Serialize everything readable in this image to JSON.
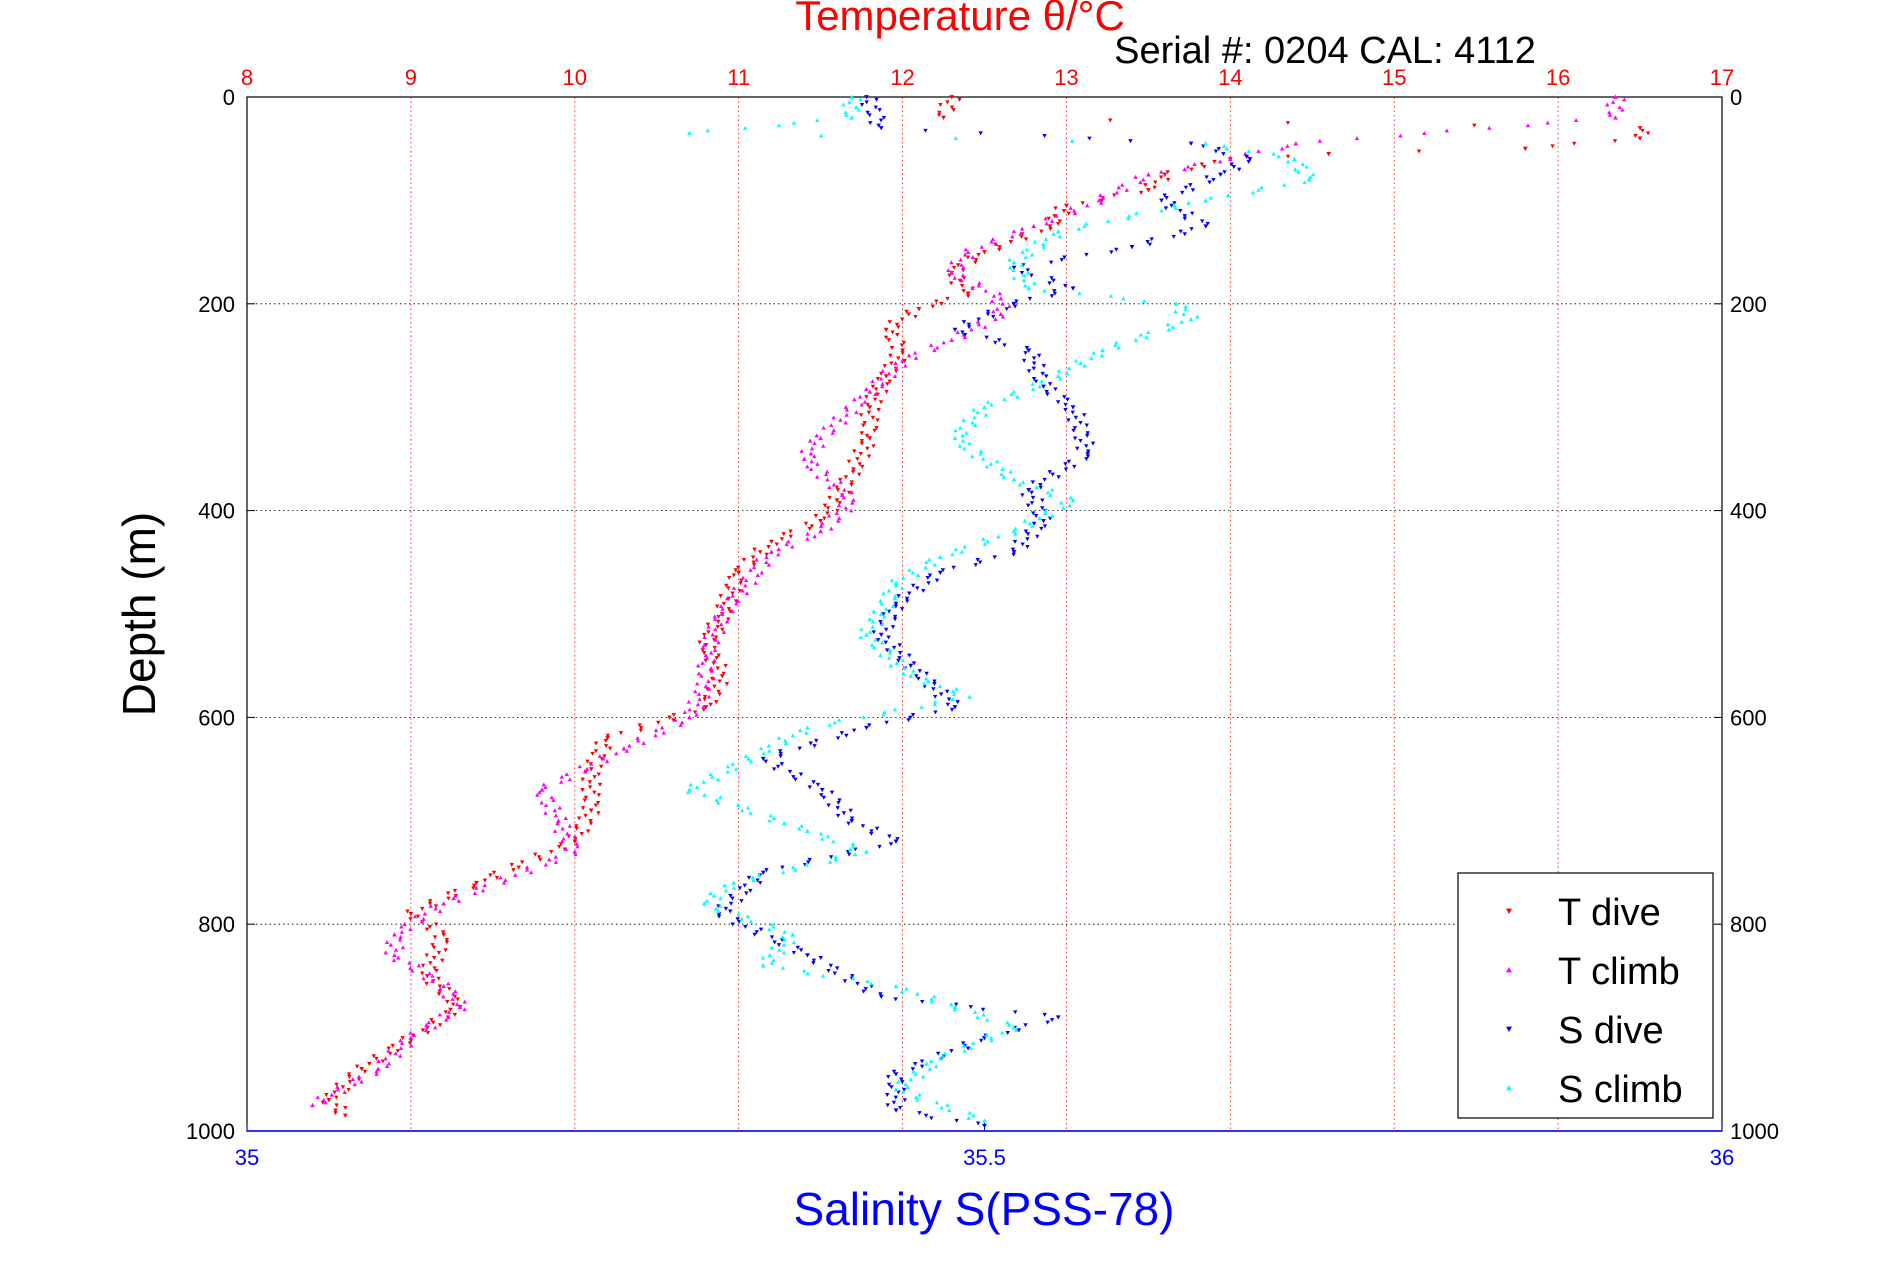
{
  "chart_data": {
    "type": "scatter",
    "title": "Temperature θ/°C",
    "subtitle": "Serial #: 0204  CAL: 4112",
    "ylabel": "Depth (m)",
    "xlabel": "Salinity S(PSS-78)",
    "ylim": [
      0,
      1000
    ],
    "y_reversed": true,
    "temperature_axis": {
      "label": "Temperature θ/°C",
      "range": [
        8,
        17
      ],
      "ticks": [
        "8",
        "9",
        "10",
        "11",
        "12",
        "13",
        "14",
        "15",
        "16",
        "17"
      ],
      "color": "#ff0000"
    },
    "salinity_axis": {
      "label": "Salinity S(PSS-78)",
      "range": [
        35,
        36
      ],
      "ticks": [
        "35",
        "35.5",
        "36"
      ],
      "color": "#0000ff"
    },
    "depth_ticks": [
      "0",
      "200",
      "400",
      "600",
      "800",
      "1000"
    ],
    "grid": {
      "vertical": true,
      "vertical_color": "#ff0000",
      "horizontal": true,
      "horizontal_color": "#000000"
    },
    "legend": {
      "position": "bottom-right",
      "entries": [
        "T dive",
        "T climb",
        "S dive",
        "S climb"
      ]
    },
    "series": [
      {
        "name": "T dive",
        "axis": "temperature",
        "color": "#ff0000",
        "marker": "triangle-down",
        "points": [
          [
            12.3,
            0
          ],
          [
            12.25,
            20
          ],
          [
            16.5,
            30
          ],
          [
            16.5,
            40
          ],
          [
            15.8,
            50
          ],
          [
            14.6,
            55
          ],
          [
            14.0,
            60
          ],
          [
            13.6,
            75
          ],
          [
            13.5,
            90
          ],
          [
            13.0,
            105
          ],
          [
            12.9,
            125
          ],
          [
            12.5,
            150
          ],
          [
            12.3,
            170
          ],
          [
            12.4,
            190
          ],
          [
            12.1,
            205
          ],
          [
            11.9,
            225
          ],
          [
            12.0,
            245
          ],
          [
            11.9,
            270
          ],
          [
            11.8,
            300
          ],
          [
            11.8,
            330
          ],
          [
            11.7,
            360
          ],
          [
            11.6,
            390
          ],
          [
            11.5,
            410
          ],
          [
            11.2,
            430
          ],
          [
            11.0,
            460
          ],
          [
            10.9,
            500
          ],
          [
            10.8,
            530
          ],
          [
            10.9,
            560
          ],
          [
            10.8,
            590
          ],
          [
            10.2,
            620
          ],
          [
            10.1,
            650
          ],
          [
            10.1,
            690
          ],
          [
            10.0,
            720
          ],
          [
            9.4,
            760
          ],
          [
            9.0,
            790
          ],
          [
            9.2,
            810
          ],
          [
            9.1,
            850
          ],
          [
            9.3,
            880
          ],
          [
            9.1,
            900
          ],
          [
            8.7,
            940
          ],
          [
            8.5,
            970
          ],
          [
            8.6,
            985
          ]
        ]
      },
      {
        "name": "T climb",
        "axis": "temperature",
        "color": "#ff00ff",
        "marker": "triangle-up",
        "points": [
          [
            16.35,
            0
          ],
          [
            16.35,
            20
          ],
          [
            14.4,
            45
          ],
          [
            14.0,
            60
          ],
          [
            13.5,
            75
          ],
          [
            13.2,
            100
          ],
          [
            12.8,
            125
          ],
          [
            12.4,
            150
          ],
          [
            12.3,
            170
          ],
          [
            12.6,
            195
          ],
          [
            12.6,
            210
          ],
          [
            12.3,
            235
          ],
          [
            12.0,
            255
          ],
          [
            11.8,
            285
          ],
          [
            11.5,
            330
          ],
          [
            11.4,
            350
          ],
          [
            11.7,
            390
          ],
          [
            11.5,
            420
          ],
          [
            11.2,
            440
          ],
          [
            10.9,
            500
          ],
          [
            10.8,
            540
          ],
          [
            10.8,
            570
          ],
          [
            10.7,
            600
          ],
          [
            10.3,
            630
          ],
          [
            9.8,
            670
          ],
          [
            9.9,
            700
          ],
          [
            10.0,
            730
          ],
          [
            9.2,
            780
          ],
          [
            8.9,
            810
          ],
          [
            8.9,
            830
          ],
          [
            9.2,
            860
          ],
          [
            9.3,
            880
          ],
          [
            9.0,
            910
          ],
          [
            8.8,
            940
          ],
          [
            8.4,
            975
          ]
        ]
      },
      {
        "name": "S dive",
        "axis": "salinity",
        "color": "#0000ff",
        "marker": "triangle-down",
        "points": [
          [
            35.42,
            0
          ],
          [
            35.43,
            30
          ],
          [
            35.64,
            45
          ],
          [
            35.68,
            60
          ],
          [
            35.66,
            75
          ],
          [
            35.62,
            100
          ],
          [
            35.65,
            125
          ],
          [
            35.6,
            145
          ],
          [
            35.52,
            165
          ],
          [
            35.56,
            185
          ],
          [
            35.52,
            200
          ],
          [
            35.48,
            225
          ],
          [
            35.53,
            245
          ],
          [
            35.54,
            280
          ],
          [
            35.56,
            300
          ],
          [
            35.57,
            345
          ],
          [
            35.53,
            380
          ],
          [
            35.54,
            410
          ],
          [
            35.52,
            440
          ],
          [
            35.47,
            460
          ],
          [
            35.44,
            490
          ],
          [
            35.43,
            520
          ],
          [
            35.45,
            550
          ],
          [
            35.48,
            590
          ],
          [
            35.42,
            610
          ],
          [
            35.35,
            640
          ],
          [
            35.39,
            670
          ],
          [
            35.41,
            700
          ],
          [
            35.44,
            720
          ],
          [
            35.35,
            750
          ],
          [
            35.32,
            790
          ],
          [
            35.38,
            830
          ],
          [
            35.43,
            870
          ],
          [
            35.55,
            890
          ],
          [
            35.5,
            910
          ],
          [
            35.44,
            945
          ],
          [
            35.44,
            980
          ],
          [
            35.5,
            995
          ]
        ]
      },
      {
        "name": "S climb",
        "axis": "salinity",
        "color": "#00ffff",
        "marker": "triangle-up",
        "points": [
          [
            35.41,
            0
          ],
          [
            35.41,
            20
          ],
          [
            35.3,
            35
          ],
          [
            35.65,
            45
          ],
          [
            35.71,
            60
          ],
          [
            35.72,
            80
          ],
          [
            35.65,
            100
          ],
          [
            35.55,
            130
          ],
          [
            35.52,
            160
          ],
          [
            35.53,
            185
          ],
          [
            35.63,
            200
          ],
          [
            35.64,
            215
          ],
          [
            35.58,
            245
          ],
          [
            35.55,
            270
          ],
          [
            35.5,
            300
          ],
          [
            35.48,
            330
          ],
          [
            35.52,
            370
          ],
          [
            35.56,
            390
          ],
          [
            35.52,
            420
          ],
          [
            35.47,
            445
          ],
          [
            35.44,
            470
          ],
          [
            35.43,
            500
          ],
          [
            35.42,
            520
          ],
          [
            35.45,
            560
          ],
          [
            35.49,
            580
          ],
          [
            35.38,
            610
          ],
          [
            35.34,
            640
          ],
          [
            35.3,
            670
          ],
          [
            35.38,
            710
          ],
          [
            35.42,
            730
          ],
          [
            35.33,
            760
          ],
          [
            35.31,
            780
          ],
          [
            35.37,
            810
          ],
          [
            35.35,
            840
          ],
          [
            35.44,
            860
          ],
          [
            35.48,
            880
          ],
          [
            35.52,
            900
          ],
          [
            35.47,
            930
          ],
          [
            35.44,
            960
          ],
          [
            35.5,
            990
          ]
        ]
      }
    ]
  }
}
